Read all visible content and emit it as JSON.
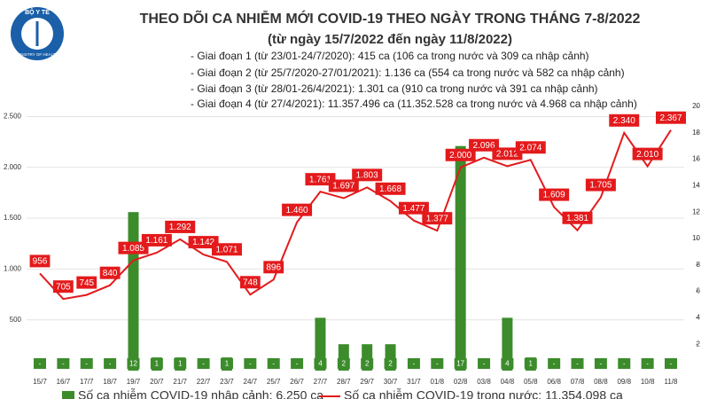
{
  "logo": {
    "top": "BỘ Y TẾ",
    "bottom": "MINISTRY OF HEALTH"
  },
  "chart_data": {
    "type": "combo",
    "title": "THEO DÕI CA NHIỄM MỚI COVID-19 THEO NGÀY TRONG THÁNG 7-8/2022",
    "subtitle": "(từ ngày 15/7/2022 đến ngày 11/8/2022)",
    "annotations": [
      "- Giai đoạn 1 (từ 23/01-24/7/2020): 415 ca (106 ca trong nước và 309 ca nhập cảnh)",
      "- Giai đoạn 2 (từ 25/7/2020-27/01/2021): 1.136 ca (554 ca trong nước và 582 ca nhập cảnh)",
      "- Giai đoạn 3 (từ 28/01-26/4/2021): 1.301 ca (910 ca trong nước và 391 ca nhập cảnh)",
      "- Giai đoạn 4 (từ 27/4/2021): 11.357.496 ca (11.352.528 ca trong nước và 4.968 ca nhập cảnh)"
    ],
    "categories": [
      "15/7",
      "16/7",
      "17/7",
      "18/7",
      "19/7",
      "20/7",
      "21/7",
      "22/7",
      "23/7",
      "24/7",
      "25/7",
      "26/7",
      "27/7",
      "28/7",
      "29/7",
      "30/7",
      "31/7",
      "01/8",
      "02/8",
      "03/8",
      "04/8",
      "05/8",
      "06/8",
      "07/8",
      "08/8",
      "09/8",
      "10/8",
      "11/8"
    ],
    "series": [
      {
        "name": "Số ca nhiễm COVID-19 nhập cảnh: 6.250 ca",
        "type": "bar",
        "axis": "y2",
        "color": "#3c8c2c",
        "values": [
          0,
          0,
          0,
          0,
          12,
          1,
          1,
          0,
          1,
          0,
          0,
          0,
          4,
          2,
          2,
          2,
          0,
          0,
          17,
          0,
          4,
          1,
          0,
          0,
          0,
          0,
          0,
          0
        ],
        "value_labels": [
          "-",
          "-",
          "-",
          "-",
          "12",
          "1",
          "1",
          "-",
          "1",
          "-",
          "-",
          "-",
          "4",
          "2",
          "2",
          "2",
          "-",
          "-",
          "17",
          "-",
          "4",
          "1",
          "-",
          "-",
          "-",
          "-",
          "-",
          "-"
        ]
      },
      {
        "name": "Số ca nhiễm COVID-19 trong nước: 11.354.098 ca",
        "type": "line",
        "color": "#e31a1c",
        "values": [
          956,
          705,
          745,
          840,
          1085,
          1161,
          1292,
          1142,
          1071,
          748,
          896,
          1460,
          1761,
          1697,
          1803,
          1668,
          1477,
          1377,
          2000,
          2096,
          2012,
          2074,
          1609,
          1381,
          1705,
          2340,
          2010,
          2367
        ],
        "value_labels": [
          "956",
          "705",
          "745",
          "840",
          "1.085",
          "1.161",
          "1.292",
          "1.142",
          "1.071",
          "748",
          "896",
          "1.460",
          "1.761",
          "1.697",
          "1.803",
          "1.668",
          "1.477",
          "1.377",
          "2.000",
          "2.096",
          "2.012",
          "2.074",
          "1.609",
          "1.381",
          "1.705",
          "2.340",
          "2.010",
          "2.367"
        ]
      }
    ],
    "ylim": [
      0,
      2600
    ],
    "yticks": [
      500,
      {
        "value": 1000,
        "label": "1.000"
      },
      {
        "value": 1500,
        "label": "1.500"
      },
      {
        "value": 2000,
        "label": "2.000"
      },
      {
        "value": 2500,
        "label": "2.500"
      }
    ],
    "y2lim": [
      0,
      20
    ],
    "y2ticks": [
      2,
      4,
      6,
      8,
      10,
      12,
      14,
      16,
      18,
      20
    ],
    "grid": true
  }
}
